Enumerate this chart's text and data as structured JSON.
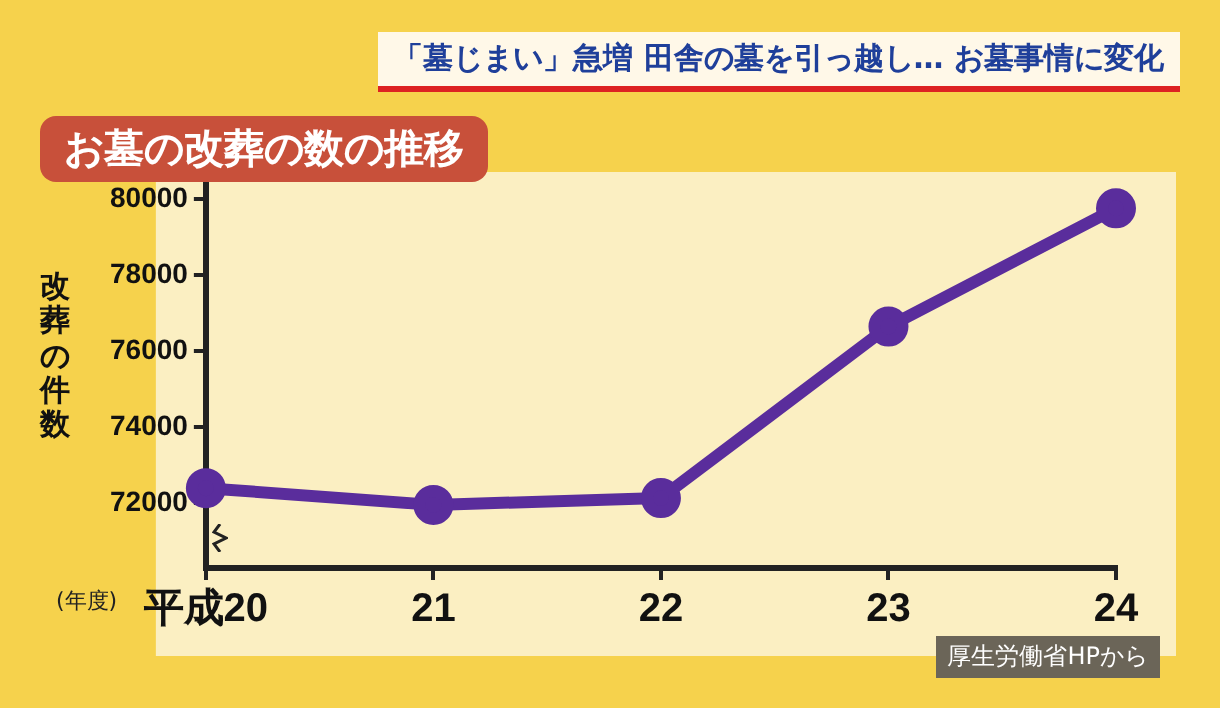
{
  "chart_data": {
    "type": "line",
    "title": "お墓の改葬の数の推移",
    "subtitle": "「墓じまい」急増 田舎の墓を引っ越し… お墓事情に変化",
    "xlabel": "(年度)",
    "ylabel": "改葬の件数",
    "categories": [
      "平成20",
      "21",
      "22",
      "23",
      "24"
    ],
    "series": [
      {
        "color": "#5a2d9c",
        "values": [
          72400,
          71960,
          72140,
          76650,
          79760
        ]
      }
    ],
    "ylim": [
      70300,
      80400
    ],
    "yticks": [
      72000,
      74000,
      76000,
      78000,
      80000
    ],
    "grid": false,
    "legend": false,
    "marker": "circle",
    "line_style": "solid",
    "annotations": [
      "厚生労働省HPから"
    ]
  }
}
